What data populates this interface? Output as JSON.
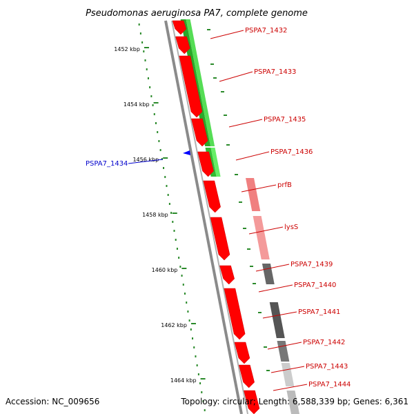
{
  "title": "Pseudomonas aeruginosa PA7, complete genome",
  "footer": {
    "accession": "Accession: NC_009656",
    "topology": "Topology: circular; Length: 6,588,339 bp; Genes: 6,361"
  },
  "colors": {
    "forward_gene": "#ff0000",
    "reverse_marker": "#0000ff",
    "green_track": "#33cc33",
    "salmon_track": "#f08080",
    "gray_track": "#666666",
    "tick_color": "#2a8a2a",
    "label_red": "#cc0000",
    "label_blue": "#0000cc"
  },
  "ruler": {
    "unit": "kbp",
    "labels": [
      "1452 kbp",
      "1454 kbp",
      "1456 kbp",
      "1458 kbp",
      "1460 kbp",
      "1462 kbp",
      "1464 kbp"
    ]
  },
  "genes": [
    {
      "label": "PSPA7_1432"
    },
    {
      "label": "PSPA7_1433"
    },
    {
      "label": "PSPA7_1435"
    },
    {
      "label": "PSPA7_1436"
    },
    {
      "label": "prfB"
    },
    {
      "label": "lysS"
    },
    {
      "label": "PSPA7_1439"
    },
    {
      "label": "PSPA7_1440"
    },
    {
      "label": "PSPA7_1441"
    },
    {
      "label": "PSPA7_1442"
    },
    {
      "label": "PSPA7_1443"
    },
    {
      "label": "PSPA7_1444"
    }
  ],
  "reverse_genes": [
    {
      "label": "PSPA7_1434"
    }
  ]
}
